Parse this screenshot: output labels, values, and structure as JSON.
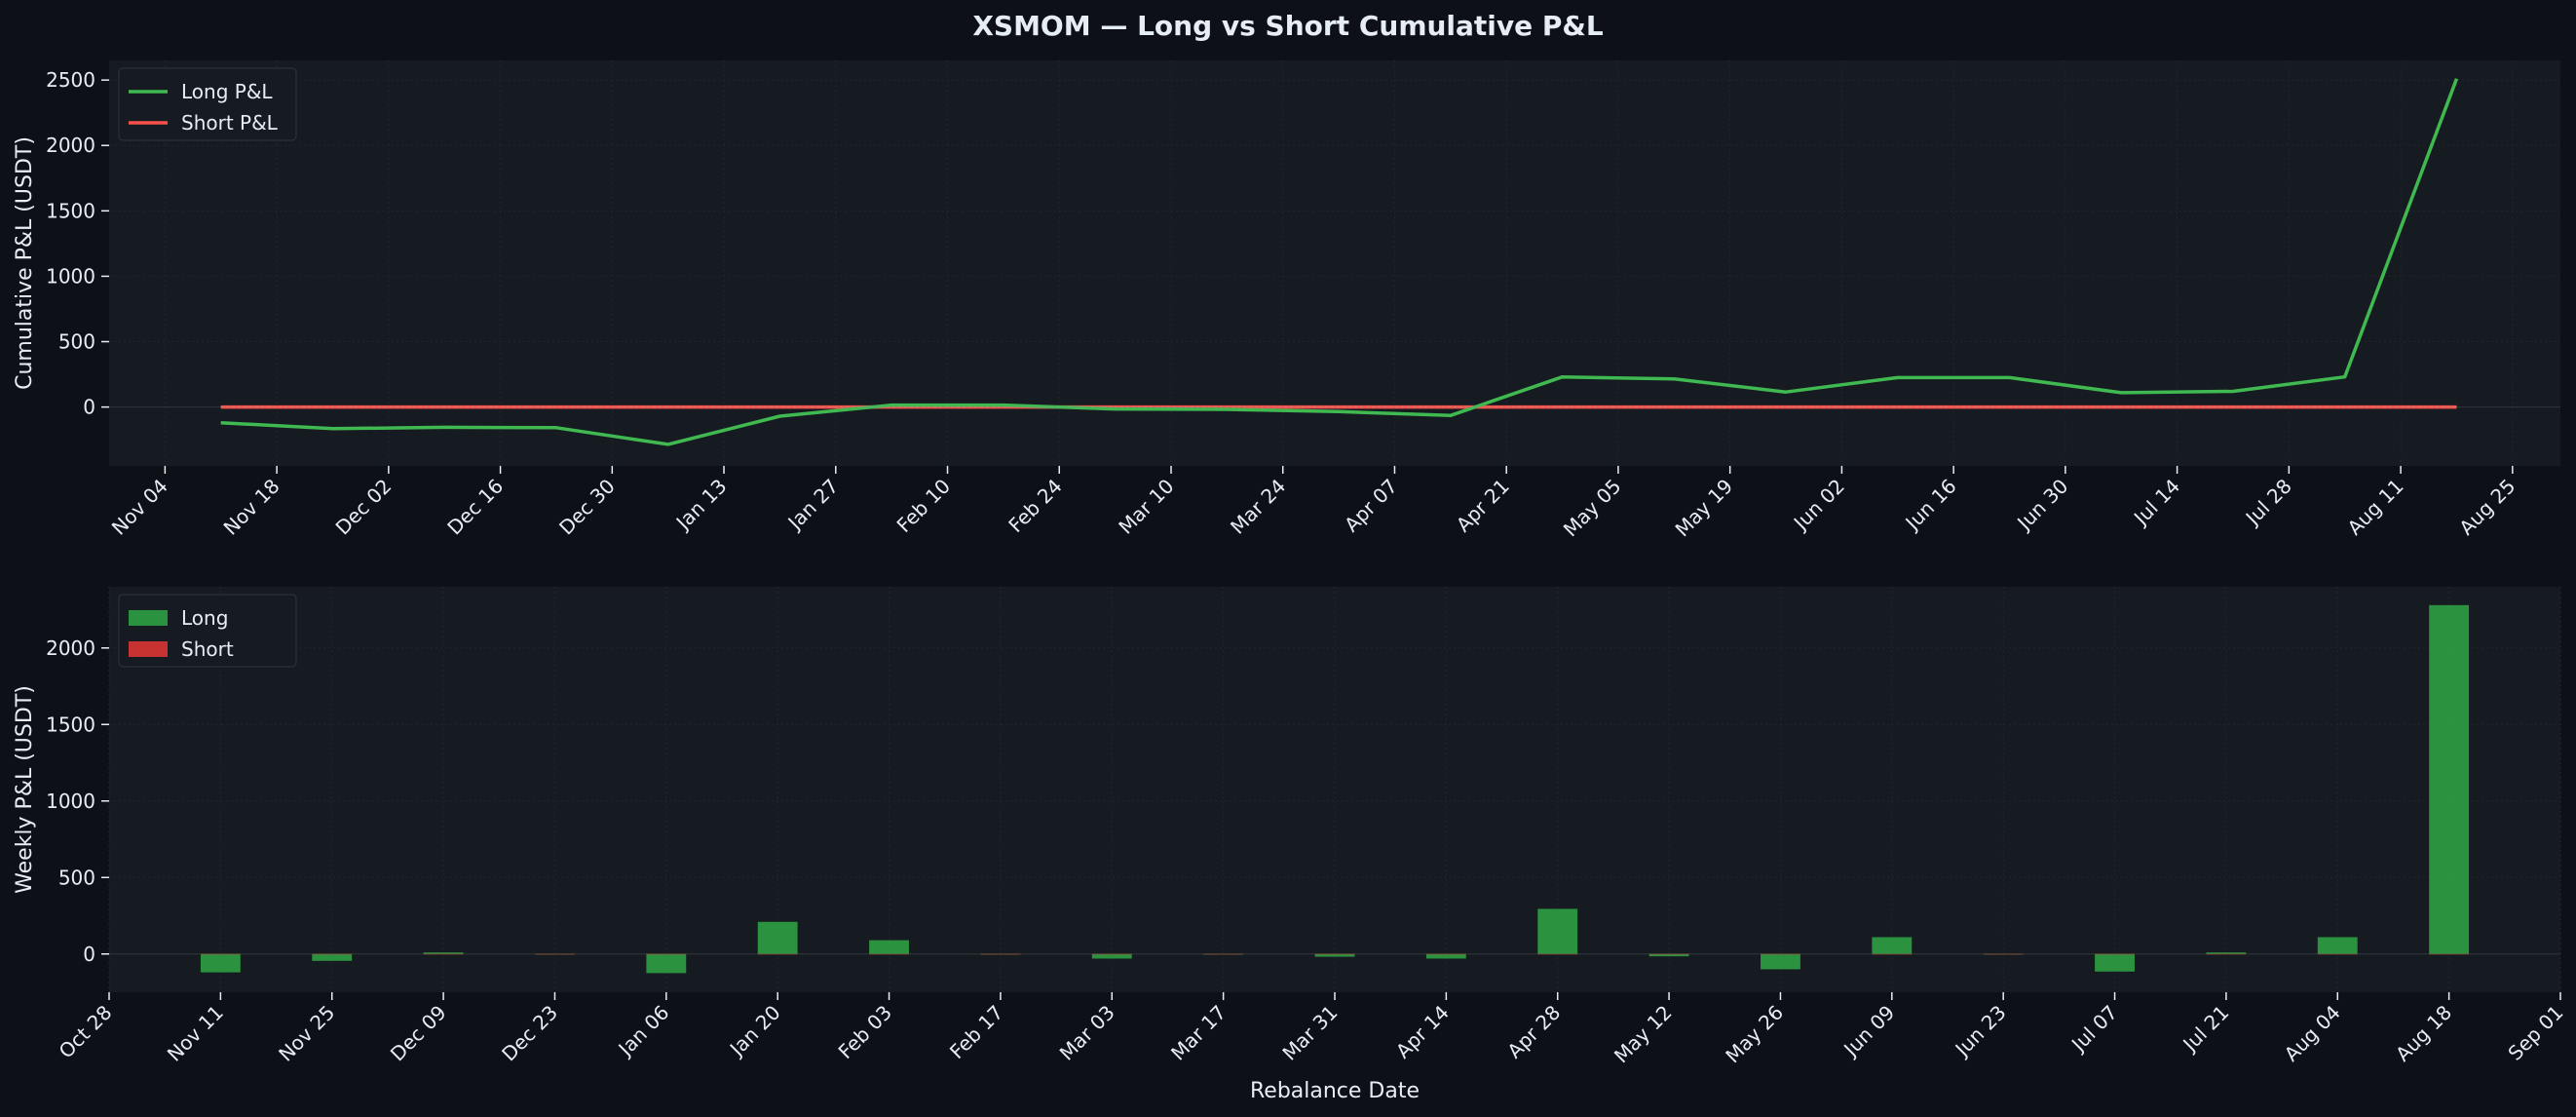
{
  "title": "XSMOM — Long vs Short Cumulative P&L",
  "colors": {
    "background": "#0d1117",
    "axes_bg": "#161b22",
    "grid": "#21262d",
    "text": "#e6edf3",
    "long_line": "#3fb950",
    "short_line": "#f85149",
    "long_bar": "#2ea043",
    "short_bar": "#da3633"
  },
  "chart_data": [
    {
      "type": "line",
      "ylabel": "Cumulative P&L (USDT)",
      "xlabel": "",
      "x_axis_range": [
        "2024-10-28",
        "2025-08-31"
      ],
      "ylim": [
        -450,
        2650
      ],
      "yticks": [
        0,
        500,
        1000,
        1500,
        2000,
        2500
      ],
      "xticks": [
        "Nov 04",
        "Nov 18",
        "Dec 02",
        "Dec 16",
        "Dec 30",
        "Jan 13",
        "Jan 27",
        "Feb 10",
        "Feb 24",
        "Mar 10",
        "Mar 24",
        "Apr 07",
        "Apr 21",
        "May 05",
        "May 19",
        "Jun 02",
        "Jun 16",
        "Jun 30",
        "Jul 14",
        "Jul 28",
        "Aug 11",
        "Aug 25"
      ],
      "xtick_dates": [
        "2024-11-04",
        "2024-11-18",
        "2024-12-02",
        "2024-12-16",
        "2024-12-30",
        "2025-01-13",
        "2025-01-27",
        "2025-02-10",
        "2025-02-24",
        "2025-03-10",
        "2025-03-24",
        "2025-04-07",
        "2025-04-21",
        "2025-05-05",
        "2025-05-19",
        "2025-06-02",
        "2025-06-16",
        "2025-06-30",
        "2025-07-14",
        "2025-07-28",
        "2025-08-11",
        "2025-08-25"
      ],
      "grid": true,
      "legend": "upper-left",
      "x": [
        "2024-11-11",
        "2024-11-25",
        "2024-12-09",
        "2024-12-23",
        "2025-01-06",
        "2025-01-20",
        "2025-02-03",
        "2025-02-17",
        "2025-03-03",
        "2025-03-17",
        "2025-03-31",
        "2025-04-14",
        "2025-04-28",
        "2025-05-12",
        "2025-05-26",
        "2025-06-09",
        "2025-06-23",
        "2025-07-07",
        "2025-07-21",
        "2025-08-04",
        "2025-08-18"
      ],
      "series": [
        {
          "name": "Long P&L",
          "color": "#3fb950",
          "values": [
            -120,
            -165,
            -155,
            -158,
            -285,
            -70,
            15,
            15,
            -15,
            -18,
            -35,
            -65,
            230,
            215,
            115,
            225,
            225,
            110,
            120,
            230,
            2510
          ]
        },
        {
          "name": "Short P&L",
          "color": "#f85149",
          "values": [
            0,
            0,
            0,
            0,
            0,
            0,
            0,
            0,
            0,
            0,
            0,
            0,
            0,
            0,
            0,
            0,
            0,
            0,
            0,
            0,
            0
          ]
        }
      ]
    },
    {
      "type": "bar",
      "ylabel": "Weekly P&L (USDT)",
      "xlabel": "Rebalance Date",
      "x_axis_range": [
        "2024-10-28",
        "2025-09-01"
      ],
      "ylim": [
        -250,
        2400
      ],
      "yticks": [
        0,
        500,
        1000,
        1500,
        2000
      ],
      "xticks": [
        "Oct 28",
        "Nov 11",
        "Nov 25",
        "Dec 09",
        "Dec 23",
        "Jan 06",
        "Jan 20",
        "Feb 03",
        "Feb 17",
        "Mar 03",
        "Mar 17",
        "Mar 31",
        "Apr 14",
        "Apr 28",
        "May 12",
        "May 26",
        "Jun 09",
        "Jun 23",
        "Jul 07",
        "Jul 21",
        "Aug 04",
        "Aug 18",
        "Sep 01"
      ],
      "xtick_dates": [
        "2024-10-28",
        "2024-11-11",
        "2024-11-25",
        "2024-12-09",
        "2024-12-23",
        "2025-01-06",
        "2025-01-20",
        "2025-02-03",
        "2025-02-17",
        "2025-03-03",
        "2025-03-17",
        "2025-03-31",
        "2025-04-14",
        "2025-04-28",
        "2025-05-12",
        "2025-05-26",
        "2025-06-09",
        "2025-06-23",
        "2025-07-07",
        "2025-07-21",
        "2025-08-04",
        "2025-08-18",
        "2025-09-01"
      ],
      "grid": true,
      "legend": "upper-left",
      "x": [
        "2024-11-11",
        "2024-11-25",
        "2024-12-09",
        "2024-12-23",
        "2025-01-06",
        "2025-01-20",
        "2025-02-03",
        "2025-02-17",
        "2025-03-03",
        "2025-03-17",
        "2025-03-31",
        "2025-04-14",
        "2025-04-28",
        "2025-05-12",
        "2025-05-26",
        "2025-06-09",
        "2025-06-23",
        "2025-07-07",
        "2025-07-21",
        "2025-08-04",
        "2025-08-18"
      ],
      "series": [
        {
          "name": "Long",
          "color": "#2ea043",
          "values": [
            -120,
            -45,
            10,
            -3,
            -125,
            210,
            90,
            0,
            -30,
            -3,
            -18,
            -30,
            295,
            -15,
            -100,
            110,
            0,
            -115,
            10,
            110,
            2280
          ]
        },
        {
          "name": "Short",
          "color": "#da3633",
          "values": [
            0,
            0,
            0,
            0,
            0,
            0,
            0,
            0,
            0,
            0,
            0,
            0,
            0,
            0,
            0,
            0,
            0,
            0,
            0,
            0,
            0
          ]
        }
      ]
    }
  ]
}
